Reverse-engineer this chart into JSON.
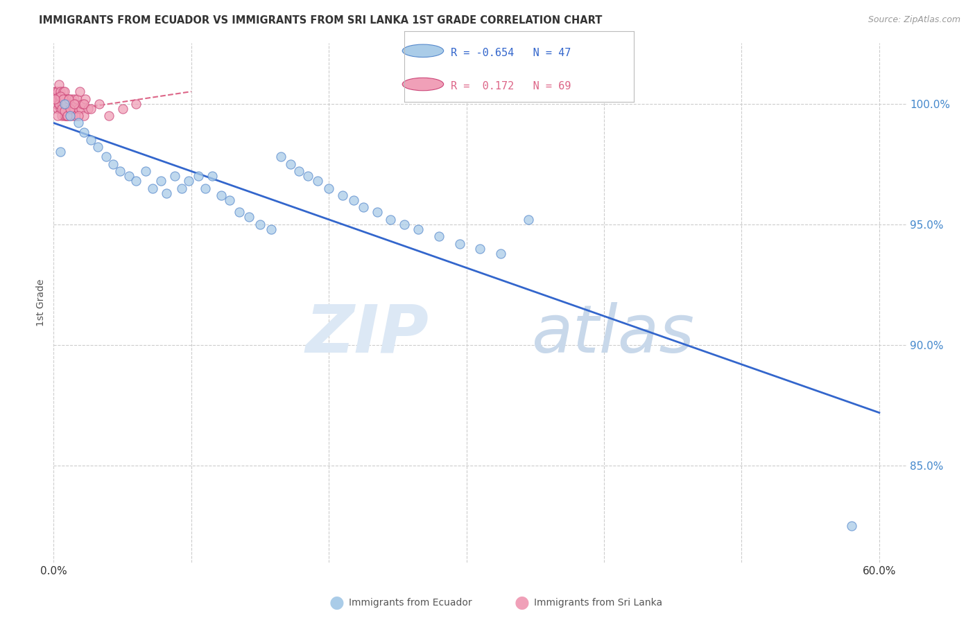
{
  "title": "IMMIGRANTS FROM ECUADOR VS IMMIGRANTS FROM SRI LANKA 1ST GRADE CORRELATION CHART",
  "source": "Source: ZipAtlas.com",
  "ylabel": "1st Grade",
  "xlim": [
    0.0,
    0.62
  ],
  "ylim": [
    81.0,
    102.5
  ],
  "y_ticks": [
    85.0,
    90.0,
    95.0,
    100.0
  ],
  "x_ticks": [
    0.0,
    0.1,
    0.2,
    0.3,
    0.4,
    0.5,
    0.6
  ],
  "ecuador_color": "#aacce8",
  "srilanka_color": "#f0a0b8",
  "ecuador_edge": "#5588cc",
  "srilanka_edge": "#cc4477",
  "blue_line_color": "#3366cc",
  "pink_line_color": "#dd6688",
  "blue_trend_x": [
    0.0,
    0.6
  ],
  "blue_trend_y": [
    99.2,
    87.2
  ],
  "pink_trend_x": [
    -0.005,
    0.1
  ],
  "pink_trend_y": [
    99.6,
    100.5
  ],
  "ecuador_x": [
    0.008,
    0.012,
    0.018,
    0.022,
    0.027,
    0.032,
    0.038,
    0.043,
    0.048,
    0.055,
    0.06,
    0.067,
    0.072,
    0.078,
    0.082,
    0.088,
    0.093,
    0.098,
    0.105,
    0.11,
    0.115,
    0.122,
    0.128,
    0.135,
    0.142,
    0.15,
    0.158,
    0.165,
    0.172,
    0.178,
    0.185,
    0.192,
    0.2,
    0.21,
    0.218,
    0.225,
    0.235,
    0.245,
    0.255,
    0.265,
    0.28,
    0.295,
    0.31,
    0.325,
    0.345,
    0.58,
    0.005
  ],
  "ecuador_y": [
    100.0,
    99.5,
    99.2,
    98.8,
    98.5,
    98.2,
    97.8,
    97.5,
    97.2,
    97.0,
    96.8,
    97.2,
    96.5,
    96.8,
    96.3,
    97.0,
    96.5,
    96.8,
    97.0,
    96.5,
    97.0,
    96.2,
    96.0,
    95.5,
    95.3,
    95.0,
    94.8,
    97.8,
    97.5,
    97.2,
    97.0,
    96.8,
    96.5,
    96.2,
    96.0,
    95.7,
    95.5,
    95.2,
    95.0,
    94.8,
    94.5,
    94.2,
    94.0,
    93.8,
    95.2,
    82.5,
    98.0
  ],
  "srilanka_x": [
    0.001,
    0.001,
    0.002,
    0.002,
    0.003,
    0.003,
    0.003,
    0.004,
    0.004,
    0.004,
    0.005,
    0.005,
    0.005,
    0.006,
    0.006,
    0.006,
    0.007,
    0.007,
    0.007,
    0.007,
    0.008,
    0.008,
    0.008,
    0.008,
    0.009,
    0.009,
    0.009,
    0.01,
    0.01,
    0.01,
    0.011,
    0.011,
    0.012,
    0.012,
    0.013,
    0.013,
    0.014,
    0.014,
    0.015,
    0.015,
    0.016,
    0.016,
    0.017,
    0.018,
    0.019,
    0.02,
    0.021,
    0.022,
    0.023,
    0.025,
    0.003,
    0.004,
    0.005,
    0.006,
    0.007,
    0.008,
    0.009,
    0.01,
    0.011,
    0.012,
    0.015,
    0.018,
    0.022,
    0.027,
    0.033,
    0.04,
    0.05,
    0.06,
    0.001
  ],
  "srilanka_y": [
    100.5,
    100.2,
    100.0,
    100.5,
    100.2,
    99.8,
    100.5,
    100.0,
    100.3,
    100.8,
    100.2,
    99.8,
    100.5,
    100.0,
    99.5,
    100.3,
    100.2,
    99.8,
    100.5,
    100.0,
    99.5,
    100.2,
    99.8,
    100.5,
    100.0,
    99.5,
    100.2,
    99.8,
    100.0,
    99.5,
    100.2,
    99.8,
    100.0,
    99.5,
    100.2,
    99.8,
    100.0,
    99.5,
    100.2,
    99.8,
    100.0,
    99.5,
    100.2,
    99.8,
    100.5,
    99.8,
    100.0,
    99.5,
    100.2,
    99.8,
    99.5,
    100.0,
    100.3,
    99.8,
    100.2,
    99.7,
    100.0,
    99.5,
    100.2,
    99.8,
    100.0,
    99.5,
    100.0,
    99.8,
    100.0,
    99.5,
    99.8,
    100.0,
    100.2
  ]
}
